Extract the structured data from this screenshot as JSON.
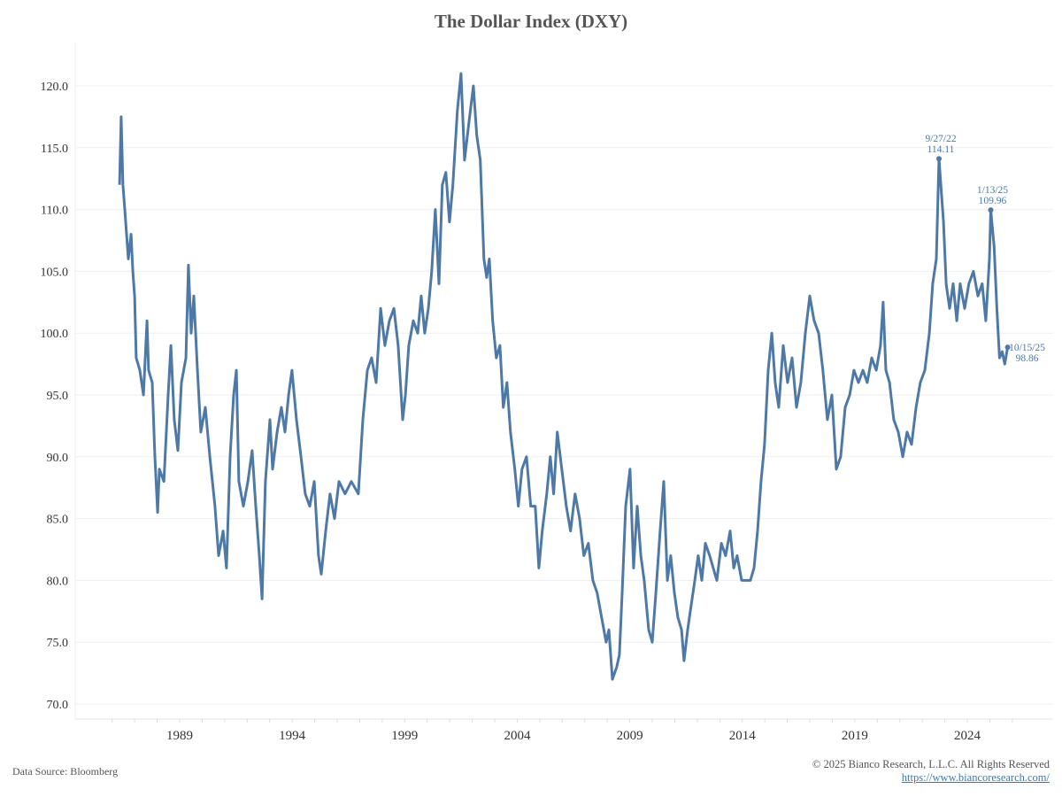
{
  "chart_data": {
    "type": "line",
    "title": "The Dollar Index (DXY)",
    "xlabel": "",
    "ylabel": "",
    "xlim": [
      1985.3,
      2026.7
    ],
    "ylim": [
      69,
      123
    ],
    "grid": true,
    "x_ticks": [
      1989,
      1994,
      1999,
      2004,
      2009,
      2014,
      2019,
      2024
    ],
    "x_tick_labels": [
      "1989",
      "1994",
      "1999",
      "2004",
      "2009",
      "2014",
      "2019",
      "2024"
    ],
    "y_ticks": [
      70,
      75,
      80,
      85,
      90,
      95,
      100,
      105,
      110,
      115,
      120
    ],
    "y_tick_labels": [
      "70.0",
      "75.0",
      "80.0",
      "85.0",
      "90.0",
      "95.0",
      "100.0",
      "105.0",
      "110.0",
      "115.0",
      "120.0"
    ],
    "series": [
      {
        "name": "DXY",
        "color": "#4e79a7",
        "x": [
          1986.33,
          1986.4,
          1986.48,
          1986.56,
          1986.72,
          1986.84,
          1986.92,
          1987.0,
          1987.07,
          1987.23,
          1987.39,
          1987.55,
          1987.62,
          1987.78,
          1987.9,
          1988.02,
          1988.1,
          1988.3,
          1988.49,
          1988.61,
          1988.76,
          1988.92,
          1989.08,
          1989.28,
          1989.39,
          1989.51,
          1989.63,
          1989.79,
          1989.94,
          1990.14,
          1990.34,
          1990.57,
          1990.73,
          1990.93,
          1991.08,
          1991.24,
          1991.4,
          1991.52,
          1991.63,
          1991.83,
          1992.03,
          1992.22,
          1992.38,
          1992.54,
          1992.66,
          1992.81,
          1993.01,
          1993.13,
          1993.33,
          1993.52,
          1993.68,
          1993.84,
          1993.99,
          1994.19,
          1994.39,
          1994.58,
          1994.78,
          1994.98,
          1995.17,
          1995.29,
          1995.49,
          1995.68,
          1995.88,
          1996.08,
          1996.35,
          1996.63,
          1996.94,
          1997.14,
          1997.34,
          1997.53,
          1997.73,
          1997.93,
          1998.12,
          1998.32,
          1998.52,
          1998.71,
          1998.91,
          1999.03,
          1999.18,
          1999.38,
          1999.58,
          1999.73,
          1999.89,
          2000.05,
          2000.2,
          2000.36,
          2000.52,
          2000.67,
          2000.83,
          2000.99,
          2001.14,
          2001.34,
          2001.5,
          2001.66,
          2001.85,
          2002.05,
          2002.2,
          2002.36,
          2002.52,
          2002.64,
          2002.76,
          2002.91,
          2003.07,
          2003.23,
          2003.38,
          2003.54,
          2003.7,
          2003.89,
          2004.05,
          2004.21,
          2004.41,
          2004.6,
          2004.8,
          2004.96,
          2005.11,
          2005.31,
          2005.47,
          2005.62,
          2005.78,
          2005.98,
          2006.18,
          2006.37,
          2006.57,
          2006.77,
          2006.96,
          2007.16,
          2007.36,
          2007.55,
          2007.75,
          2007.95,
          2008.07,
          2008.23,
          2008.42,
          2008.54,
          2008.66,
          2008.82,
          2009.01,
          2009.17,
          2009.33,
          2009.49,
          2009.64,
          2009.84,
          2010.0,
          2010.16,
          2010.35,
          2010.51,
          2010.67,
          2010.82,
          2010.98,
          2011.14,
          2011.3,
          2011.41,
          2011.57,
          2011.73,
          2011.89,
          2012.04,
          2012.2,
          2012.36,
          2012.55,
          2012.71,
          2012.87,
          2013.07,
          2013.26,
          2013.46,
          2013.62,
          2013.77,
          2013.97,
          2014.17,
          2014.36,
          2014.52,
          2014.68,
          2014.83,
          2014.99,
          2015.15,
          2015.31,
          2015.46,
          2015.62,
          2015.82,
          2016.01,
          2016.21,
          2016.41,
          2016.6,
          2016.8,
          2017.0,
          2017.19,
          2017.39,
          2017.58,
          2017.78,
          2017.98,
          2018.18,
          2018.37,
          2018.57,
          2018.77,
          2018.96,
          2019.16,
          2019.36,
          2019.55,
          2019.75,
          2019.95,
          2020.14,
          2020.26,
          2020.38,
          2020.54,
          2020.73,
          2020.93,
          2021.13,
          2021.32,
          2021.52,
          2021.72,
          2021.91,
          2022.11,
          2022.31,
          2022.46,
          2022.62,
          2022.74,
          2022.94,
          2023.06,
          2023.21,
          2023.37,
          2023.53,
          2023.68,
          2023.88,
          2024.07,
          2024.27,
          2024.47,
          2024.66,
          2024.82,
          2024.98,
          2025.04,
          2025.19,
          2025.31,
          2025.43,
          2025.55,
          2025.66,
          2025.79
        ],
        "values": [
          112,
          117.5,
          112,
          110,
          106,
          108,
          105,
          103,
          98,
          97,
          95,
          101,
          97,
          96,
          90,
          85.5,
          89,
          88,
          95,
          99,
          93,
          90.5,
          96,
          98,
          105.5,
          100,
          103,
          97,
          92,
          94,
          90,
          86,
          82,
          84,
          81,
          90,
          95,
          97,
          88,
          86,
          88,
          90.5,
          86,
          82,
          78.5,
          88,
          93,
          89,
          92,
          94,
          92,
          95,
          97,
          93,
          90,
          87,
          86,
          88,
          82,
          80.5,
          84,
          87,
          85,
          88,
          87,
          88,
          87,
          93,
          97,
          98,
          96,
          102,
          99,
          101,
          102,
          99,
          93,
          95,
          99,
          101,
          100,
          103,
          100,
          102,
          105,
          110,
          104,
          112,
          113,
          109,
          112,
          118,
          121,
          114,
          117,
          120,
          116,
          114,
          106,
          104.5,
          106,
          101,
          98,
          99,
          94,
          96,
          92,
          89,
          86,
          89,
          90,
          86,
          86,
          81,
          84,
          87,
          90,
          87,
          92,
          89,
          86,
          84,
          87,
          85,
          82,
          83,
          80,
          79,
          77,
          75,
          76,
          72,
          73,
          74,
          79,
          86,
          89,
          81,
          86,
          82,
          80,
          76,
          75,
          79,
          84,
          88,
          80,
          82,
          79,
          77,
          76,
          73.5,
          76,
          78,
          80,
          82,
          80,
          83,
          82,
          81,
          80,
          83,
          82,
          84,
          81,
          82,
          80,
          80,
          80,
          81,
          84,
          88,
          91,
          97,
          100,
          96,
          94,
          99,
          96,
          98,
          94,
          96,
          100,
          103,
          101,
          100,
          97,
          93,
          95,
          89,
          90,
          94,
          95,
          97,
          96,
          97,
          96,
          98,
          97,
          99,
          102.5,
          97,
          96,
          93,
          92,
          90,
          92,
          91,
          94,
          96,
          97,
          100,
          104,
          106,
          114.11,
          109,
          104,
          102,
          104,
          101,
          104,
          102,
          104,
          105,
          103,
          104,
          101,
          106,
          109.96,
          107,
          102,
          98,
          98.5,
          97.5,
          98.86
        ]
      }
    ],
    "annotations": [
      {
        "date": "9/27/22",
        "x": 2022.74,
        "value": "114.11",
        "y": 114.11
      },
      {
        "date": "1/13/25",
        "x": 2025.04,
        "value": "109.96",
        "y": 109.96
      },
      {
        "date": "10/15/25",
        "x": 2025.79,
        "value": "98.86",
        "y": 98.86
      }
    ]
  },
  "footer": {
    "source": "Data Source: Bloomberg",
    "copyright": "© 2025 Bianco Research, L.L.C. All Rights Reserved",
    "link": "https://www.biancoresearch.com/"
  }
}
